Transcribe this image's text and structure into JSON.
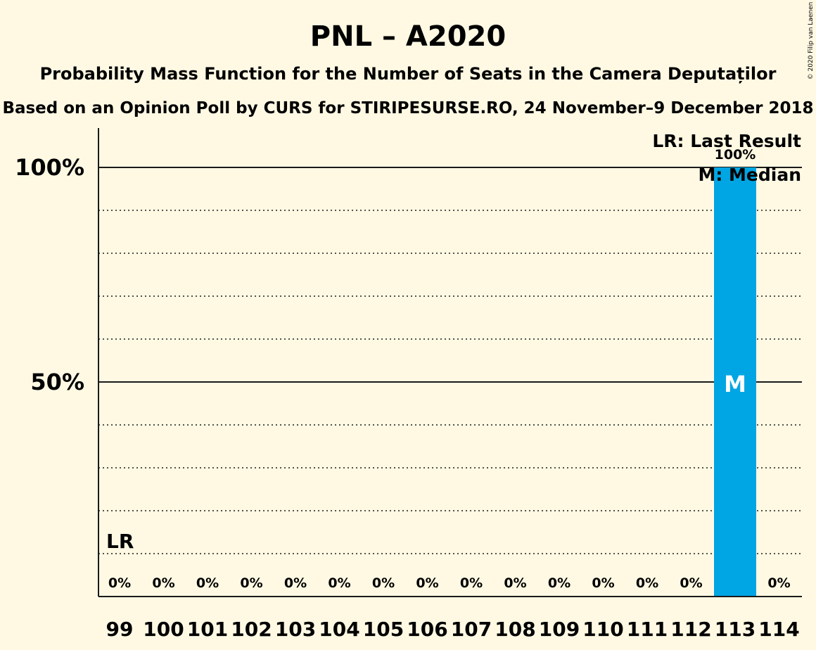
{
  "chart_data": {
    "type": "bar",
    "title": "PNL – A2020",
    "subtitle": "Probability Mass Function for the Number of Seats in the Camera Deputaților",
    "subtitle2": "Based on an Opinion Poll by CURS for STIRIPESURSE.RO, 24 November–9 December 2018",
    "copyright": "© 2020 Filip van Laenen",
    "categories": [
      "99",
      "100",
      "101",
      "102",
      "103",
      "104",
      "105",
      "106",
      "107",
      "108",
      "109",
      "110",
      "111",
      "112",
      "113",
      "114"
    ],
    "values": [
      0,
      0,
      0,
      0,
      0,
      0,
      0,
      0,
      0,
      0,
      0,
      0,
      0,
      0,
      100,
      0
    ],
    "value_labels": [
      "0%",
      "0%",
      "0%",
      "0%",
      "0%",
      "0%",
      "0%",
      "0%",
      "0%",
      "0%",
      "0%",
      "0%",
      "0%",
      "0%",
      "100%",
      "0%"
    ],
    "ylim": [
      0,
      100
    ],
    "y_ticks": [
      {
        "value": 50,
        "label": "50%"
      },
      {
        "value": 100,
        "label": "100%"
      }
    ],
    "y_gridlines_dotted": [
      10,
      20,
      30,
      40,
      60,
      70,
      80,
      90
    ],
    "bar_color": "#00a6e3",
    "last_result": {
      "category": "99",
      "label": "LR"
    },
    "median": {
      "category": "113",
      "label": "M"
    },
    "legend": [
      "LR: Last Result",
      "M: Median"
    ],
    "legend_placement": "top-right"
  }
}
